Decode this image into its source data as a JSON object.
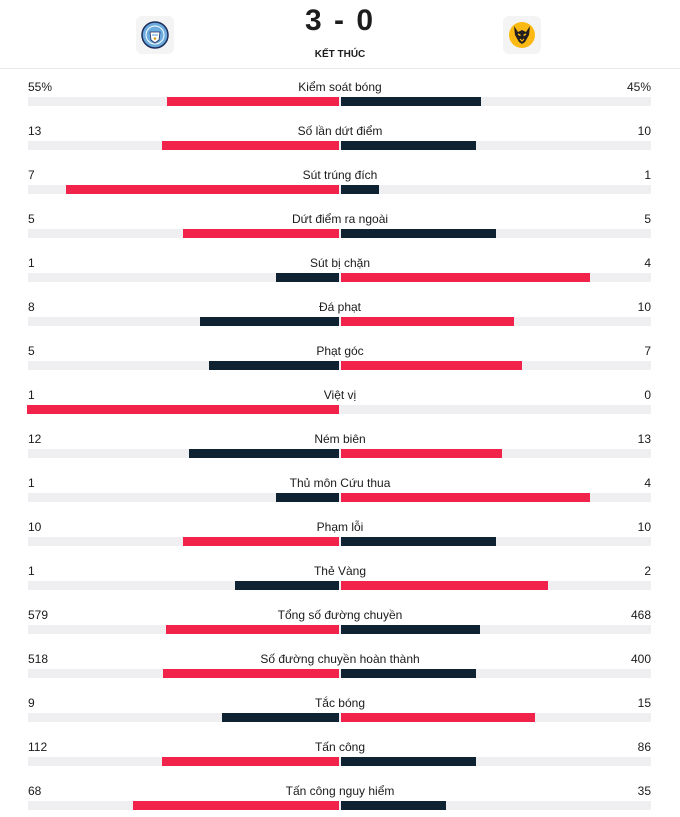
{
  "match": {
    "score": "3 - 0",
    "status": "KẾT THÚC",
    "home_logo": "manchester-city-crest-icon",
    "away_logo": "wolves-crest-icon"
  },
  "colors": {
    "winner": "#f2234a",
    "loser": "#0f2231",
    "track": "#efeff1"
  },
  "stats": [
    {
      "label": "Kiểm soát bóng",
      "home": "55%",
      "away": "45%",
      "home_value": 55,
      "away_value": 45,
      "max": 100
    },
    {
      "label": "Số lần dứt điểm",
      "home": "13",
      "away": "10",
      "home_value": 13,
      "away_value": 10,
      "max": 23
    },
    {
      "label": "Sút trúng đích",
      "home": "7",
      "away": "1",
      "home_value": 7,
      "away_value": 1,
      "max": 8
    },
    {
      "label": "Dứt điểm ra ngoài",
      "home": "5",
      "away": "5",
      "home_value": 5,
      "away_value": 5,
      "max": 10
    },
    {
      "label": "Sút bị chặn",
      "home": "1",
      "away": "4",
      "home_value": 1,
      "away_value": 4,
      "max": 5
    },
    {
      "label": "Đá phạt",
      "home": "8",
      "away": "10",
      "home_value": 8,
      "away_value": 10,
      "max": 18
    },
    {
      "label": "Phạt góc",
      "home": "5",
      "away": "7",
      "home_value": 5,
      "away_value": 7,
      "max": 12
    },
    {
      "label": "Việt vị",
      "home": "1",
      "away": "0",
      "home_value": 1,
      "away_value": 0,
      "max": 1
    },
    {
      "label": "Ném biên",
      "home": "12",
      "away": "13",
      "home_value": 12,
      "away_value": 13,
      "max": 25
    },
    {
      "label": "Thủ môn Cứu thua",
      "home": "1",
      "away": "4",
      "home_value": 1,
      "away_value": 4,
      "max": 5
    },
    {
      "label": "Phạm lỗi",
      "home": "10",
      "away": "10",
      "home_value": 10,
      "away_value": 10,
      "max": 20
    },
    {
      "label": "Thẻ Vàng",
      "home": "1",
      "away": "2",
      "home_value": 1,
      "away_value": 2,
      "max": 3
    },
    {
      "label": "Tổng số đường chuyền",
      "home": "579",
      "away": "468",
      "home_value": 579,
      "away_value": 468,
      "max": 1047
    },
    {
      "label": "Số đường chuyền hoàn thành",
      "home": "518",
      "away": "400",
      "home_value": 518,
      "away_value": 400,
      "max": 918
    },
    {
      "label": "Tắc bóng",
      "home": "9",
      "away": "15",
      "home_value": 9,
      "away_value": 15,
      "max": 24
    },
    {
      "label": "Tấn công",
      "home": "112",
      "away": "86",
      "home_value": 112,
      "away_value": 86,
      "max": 198
    },
    {
      "label": "Tấn công nguy hiểm",
      "home": "68",
      "away": "35",
      "home_value": 68,
      "away_value": 35,
      "max": 103
    }
  ]
}
